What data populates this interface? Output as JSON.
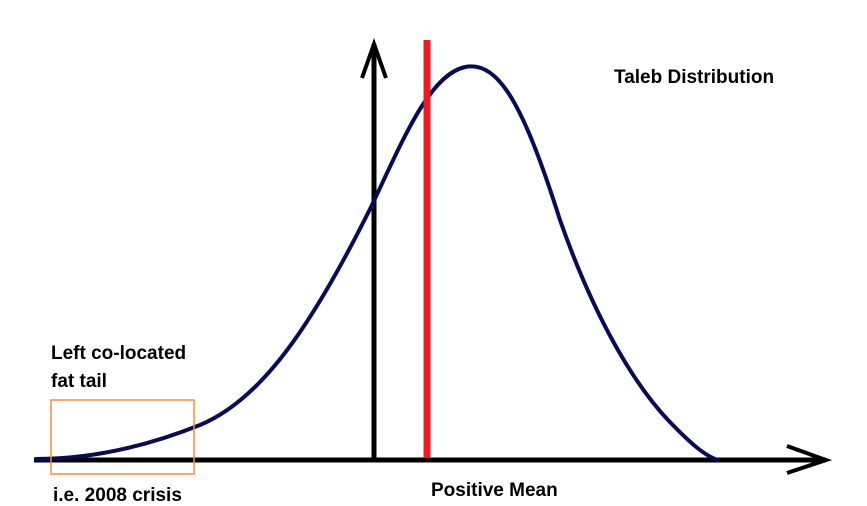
{
  "diagram": {
    "title": "Taleb Distribution",
    "tail_label_line1": "Left co-located",
    "tail_label_line2": "fat tail",
    "tail_example": "i.e. 2008 crisis",
    "mean_label": "Positive Mean"
  },
  "colors": {
    "curve": "#0b0b55",
    "axes": "#000000",
    "mean_line": "#ea1c24",
    "tail_box": "#f0913a"
  }
}
